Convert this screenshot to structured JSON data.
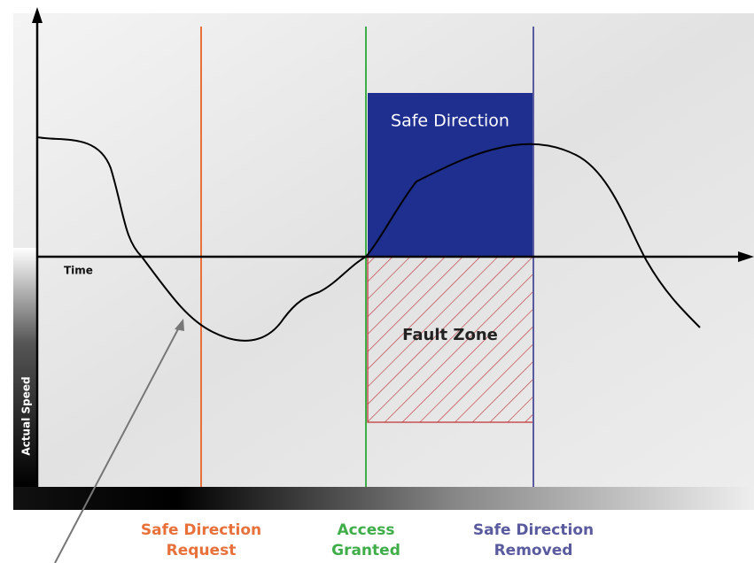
{
  "diagram": {
    "plot": {
      "y_axis_label": "Actual Speed",
      "x_axis_label": "Time"
    },
    "regions": {
      "safe_direction": "Safe Direction",
      "fault_zone": "Fault Zone"
    },
    "events": [
      {
        "lines": [
          "Safe Direction",
          "Request"
        ]
      },
      {
        "lines": [
          "Access",
          "Granted"
        ]
      },
      {
        "lines": [
          "Safe Direction",
          "Removed"
        ]
      }
    ]
  }
}
